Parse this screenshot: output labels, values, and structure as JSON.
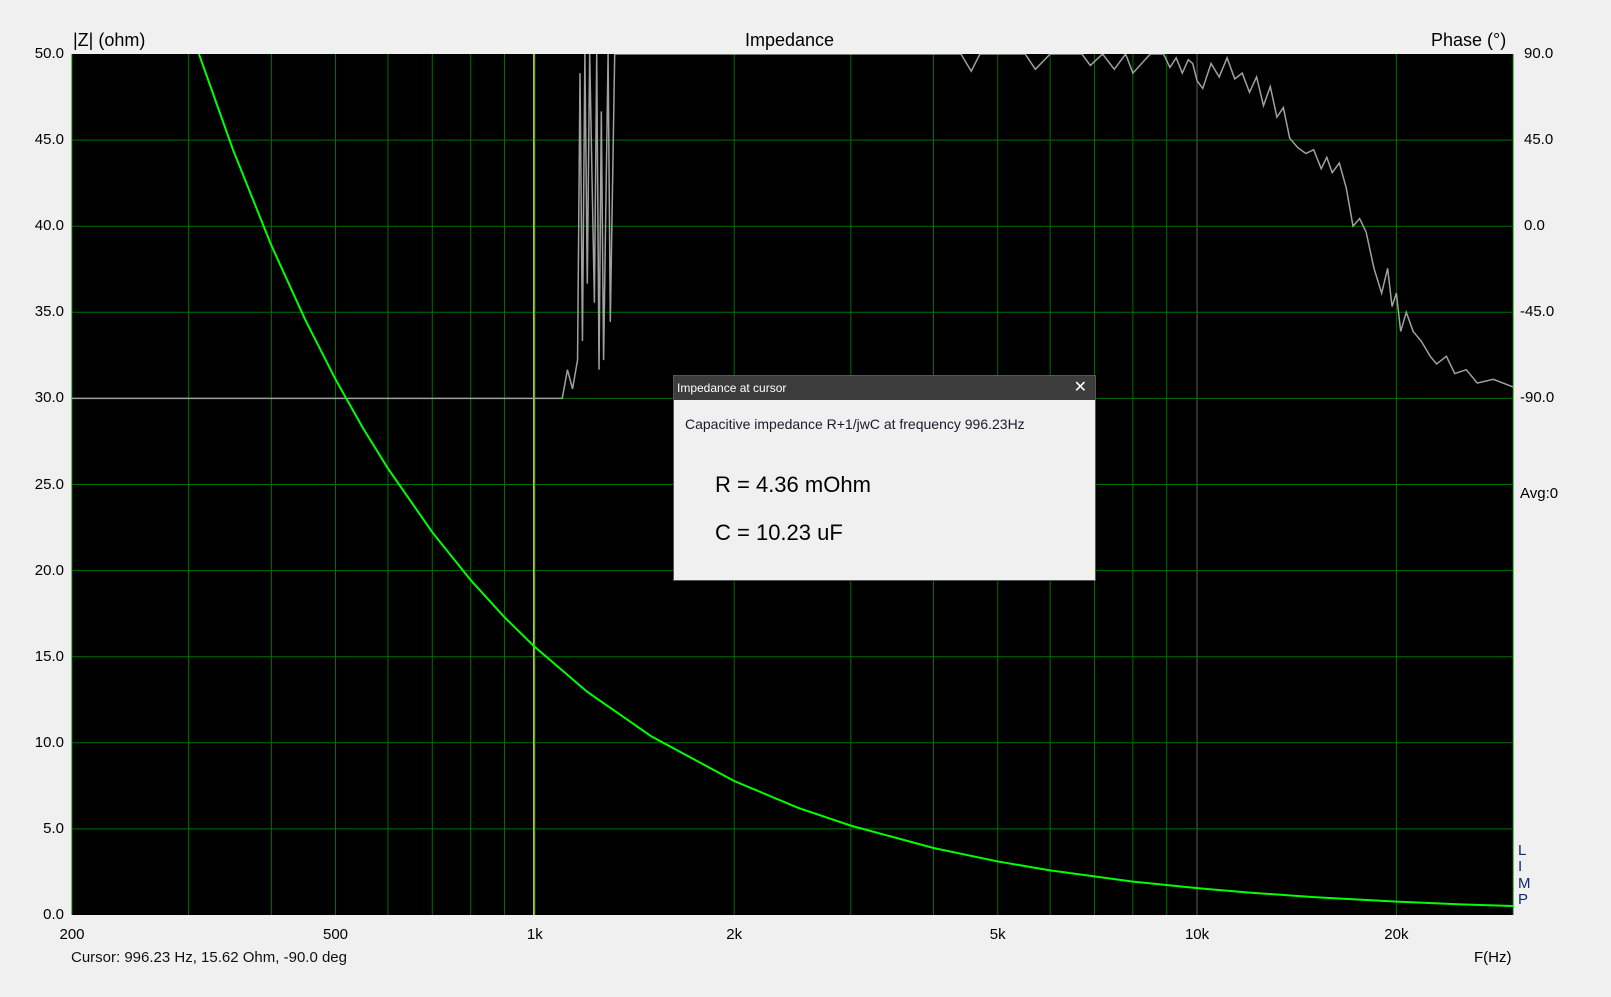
{
  "chart_data": {
    "type": "line",
    "title": "Impedance",
    "ylabel": "|Z| (ohm)",
    "y2label": "Phase (°)",
    "xlabel": "F(Hz)",
    "xscale": "log",
    "xlim": [
      200,
      30000
    ],
    "ylim": [
      0,
      50
    ],
    "y2lim": [
      -360,
      90
    ],
    "grid": true,
    "yticks": [
      "50.0",
      "45.0",
      "40.0",
      "35.0",
      "30.0",
      "25.0",
      "20.0",
      "15.0",
      "10.0",
      "5.0",
      "0.0"
    ],
    "y2ticks": [
      "90.0",
      "45.0",
      "0.0",
      "-45.0",
      "-90.0"
    ],
    "y2_avg_label": "Avg:0",
    "xticks": [
      {
        "v": 200,
        "label": "200"
      },
      {
        "v": 500,
        "label": "500"
      },
      {
        "v": 1000,
        "label": "1k"
      },
      {
        "v": 2000,
        "label": "2k"
      },
      {
        "v": 5000,
        "label": "5k"
      },
      {
        "v": 10000,
        "label": "10k"
      },
      {
        "v": 20000,
        "label": "20k"
      }
    ],
    "series": [
      {
        "id": "magnitude",
        "color": "#00ff00",
        "x": [
          311,
          350,
          400,
          450,
          500,
          550,
          600,
          700,
          800,
          900,
          996.23,
          1200,
          1500,
          2000,
          2500,
          3000,
          4000,
          5000,
          6000,
          8000,
          10000,
          12000,
          15000,
          20000,
          25000,
          30000
        ],
        "y": [
          50.0,
          44.45,
          38.89,
          34.57,
          31.11,
          28.28,
          25.93,
          22.23,
          19.45,
          17.29,
          15.62,
          12.96,
          10.37,
          7.78,
          6.22,
          5.19,
          3.89,
          3.11,
          2.59,
          1.94,
          1.56,
          1.3,
          1.04,
          0.78,
          0.62,
          0.52
        ]
      },
      {
        "id": "phase",
        "axis": "right",
        "color": "#a0a0a0",
        "x": [
          200,
          1100,
          1120,
          1140,
          1160,
          1170,
          1180,
          1190,
          1200,
          1210,
          1230,
          1240,
          1250,
          1260,
          1270,
          1290,
          1300,
          1320,
          1330,
          4000,
          4400,
          4560,
          4700,
          5500,
          5700,
          6000,
          6700,
          6900,
          7200,
          7500,
          7800,
          8000,
          8500,
          8900,
          9100,
          9300,
          9500,
          9700,
          9850,
          10000,
          10200,
          10500,
          10800,
          11100,
          11400,
          11700,
          12000,
          12300,
          12600,
          12900,
          13200,
          13500,
          13800,
          14200,
          14600,
          15000,
          15400,
          15700,
          16000,
          16400,
          16800,
          17200,
          17600,
          18000,
          18500,
          19000,
          19400,
          19700,
          20000,
          20300,
          20700,
          21200,
          21800,
          22500,
          23000,
          23800,
          24500,
          25500,
          26500,
          28000,
          30000
        ],
        "y": [
          -90,
          -90,
          -75,
          -85,
          -70,
          80,
          -60,
          90,
          -30,
          90,
          -40,
          90,
          -75,
          60,
          -70,
          90,
          -50,
          90,
          90,
          90,
          90,
          81,
          90,
          90,
          82,
          90,
          90,
          84,
          90,
          82,
          90,
          80,
          90,
          90,
          83,
          88,
          80,
          87,
          85,
          76,
          72,
          85,
          78,
          88,
          77,
          80,
          70,
          78,
          63,
          73,
          57,
          62,
          46,
          41,
          38,
          40,
          30,
          36,
          28,
          33,
          20,
          0,
          4,
          -3,
          -22,
          -35,
          -22,
          -42,
          -35,
          -55,
          -45,
          -55,
          -60,
          -68,
          -72,
          -68,
          -77,
          -75,
          -82,
          -80,
          -84
        ]
      }
    ],
    "cursor": {
      "x": 996.23,
      "color": "#a8d800"
    }
  },
  "status": {
    "cursor_text": "Cursor: 996.23 Hz, 15.62 Ohm, -90.0 deg"
  },
  "brand": {
    "letters": [
      "L",
      "I",
      "M",
      "P"
    ]
  },
  "dialog": {
    "title": "Impedance at cursor",
    "close_icon": "close-icon",
    "description": "Capacitive impedance R+1/jwC at frequency 996.23Hz",
    "r_line": "R = 4.36 mOhm",
    "c_line": "C = 10.23 uF"
  }
}
